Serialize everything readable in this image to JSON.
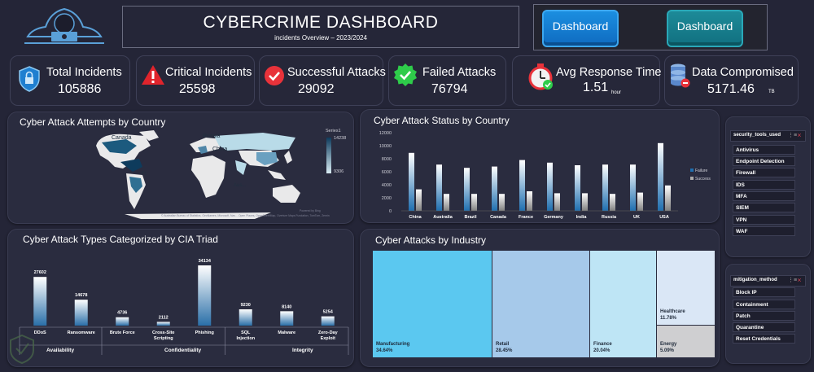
{
  "header": {
    "title": "CYBERCRIME DASHBOARD",
    "subtitle": "incidents Overview – 2023/2024",
    "buttons": [
      "Dashboard",
      "Dashboard"
    ]
  },
  "kpis": [
    {
      "label": "Total Incidents",
      "value": "105886",
      "unit": "",
      "icon": "shield-lock-icon"
    },
    {
      "label": "Critical Incidents",
      "value": "25598",
      "unit": "",
      "icon": "warning-icon"
    },
    {
      "label": "Successful Attacks",
      "value": "29092",
      "unit": "",
      "icon": "check-circle-icon"
    },
    {
      "label": "Failed Attacks",
      "value": "76794",
      "unit": "",
      "icon": "badge-check-icon"
    },
    {
      "label": "Avg Response Time",
      "value": "1.51",
      "unit": "hour",
      "icon": "stopwatch-icon"
    },
    {
      "label": "Data Compromised",
      "value": "5171.46",
      "unit": "TB",
      "icon": "database-icon"
    }
  ],
  "map_panel": {
    "title": "Cyber Attack Attempts by Country",
    "legend_title": "Series1",
    "legend_max": "14238",
    "legend_min": "9306",
    "country_labels": [
      "Canada",
      "Russia",
      "China",
      "Fr.",
      "Aus..."
    ],
    "credit_left": "© Australian Bureau of Statistics, GeoNames, Microsoft, Nav...",
    "credit_mid": "Open Places, OpenStreetMap, Overture Maps Fundation, TomTom, Zenrin",
    "credit_right": "Powered by Bing"
  },
  "status_panel": {
    "title": "Cyber Attack Status by Country"
  },
  "cia_panel": {
    "title": "Cyber Attack Types Categorized by CIA Triad",
    "groups": [
      "Availability",
      "Confidentiality",
      "Integrity"
    ]
  },
  "industry_panel": {
    "title": "Cyber Attacks by Industry",
    "tiles": [
      {
        "name": "Manufacturing",
        "pct": "34.64%",
        "color": "#5bc8f0"
      },
      {
        "name": "Retail",
        "pct": "28.45%",
        "color": "#a6c9ea"
      },
      {
        "name": "Finance",
        "pct": "20.04%",
        "color": "#bee5f5"
      },
      {
        "name": "Healthcare",
        "pct": "11.78%",
        "color": "#dae7f6"
      },
      {
        "name": "Energy",
        "pct": "5.09%",
        "color": "#cfcfd1"
      }
    ]
  },
  "slicers": [
    {
      "title": "security_tools_used",
      "items": [
        "Antivirus",
        "Endpoint Detection",
        "Firewall",
        "IDS",
        "MFA",
        "SIEM",
        "VPN",
        "WAF"
      ]
    },
    {
      "title": "mitigation_method",
      "items": [
        "Block IP",
        "Containment",
        "Patch",
        "Quarantine",
        "Reset Credentials"
      ]
    }
  ],
  "chart_data": [
    {
      "type": "bar",
      "title": "Cyber Attack Status by Country",
      "categories": [
        "China",
        "Australia",
        "Brazil",
        "Canada",
        "France",
        "Germany",
        "India",
        "Russia",
        "UK",
        "USA"
      ],
      "ylim": [
        0,
        12000
      ],
      "yticks": [
        "0",
        "2000",
        "4000",
        "6000",
        "8000",
        "10000",
        "12000"
      ],
      "series": [
        {
          "name": "Failure",
          "values": [
            8900,
            7100,
            6600,
            6800,
            7800,
            7400,
            7000,
            7100,
            7100,
            10400
          ]
        },
        {
          "name": "Success",
          "values": [
            3300,
            2600,
            2600,
            2600,
            3000,
            2700,
            2700,
            2600,
            2800,
            3900
          ]
        }
      ],
      "legend": "right",
      "grid": false
    },
    {
      "type": "bar",
      "title": "Cyber Attack Types Categorized by CIA Triad",
      "categories": [
        "DDoS",
        "Ransomware",
        "Brute Force",
        "Cross-Site Scripting",
        "Phishing",
        "SQL Injection",
        "Malware",
        "Zero-Day Exploit"
      ],
      "values": [
        27602,
        14678,
        4736,
        2112,
        34134,
        9230,
        8140,
        5254
      ],
      "ylim": [
        0,
        36000
      ],
      "grid": false
    }
  ]
}
